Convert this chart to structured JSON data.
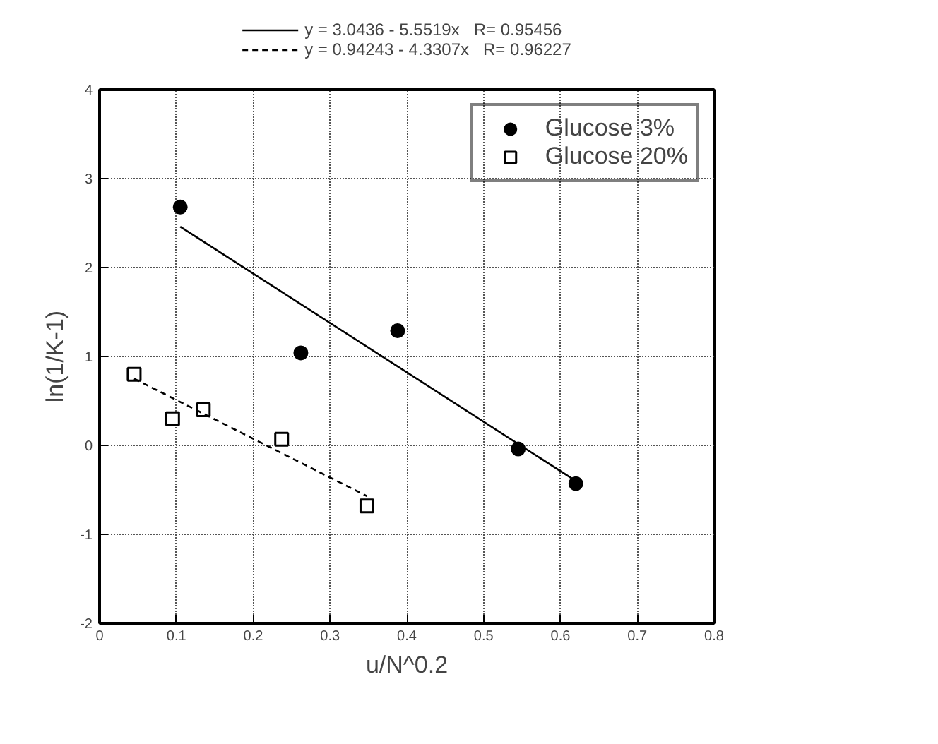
{
  "chart_data": {
    "type": "scatter",
    "xlabel": "u/N^0.2",
    "ylabel": "ln(1/K-1)",
    "xlim": [
      0,
      0.8
    ],
    "ylim": [
      -2,
      4
    ],
    "xticks": [
      0,
      0.1,
      0.2,
      0.3,
      0.4,
      0.5,
      0.6,
      0.7,
      0.8
    ],
    "yticks": [
      -2,
      -1,
      0,
      1,
      2,
      3,
      4
    ],
    "grid": true,
    "legend": "top right",
    "series": [
      {
        "name": "Glucose 3%",
        "color": "#000000",
        "marker": "circle",
        "x": [
          0.105,
          0.262,
          0.388,
          0.545,
          0.62
        ],
        "values": [
          2.68,
          1.04,
          1.29,
          -0.04,
          -0.43
        ]
      },
      {
        "name": "Glucose 20%",
        "color": "#000000",
        "marker": "square",
        "x": [
          0.045,
          0.095,
          0.135,
          0.237,
          0.348
        ],
        "values": [
          0.8,
          0.3,
          0.4,
          0.07,
          -0.68
        ]
      },
      {
        "name": "y = 3.0436 - 5.5519x   R= 0.95456",
        "color": "#000000",
        "type": "line",
        "line_style": "solid",
        "marker": "none",
        "x": [
          0.105,
          0.62
        ],
        "values": [
          2.46,
          -0.4
        ]
      },
      {
        "name": "y = 0.94243 - 4.3307x   R= 0.96227",
        "color": "#000000",
        "type": "line",
        "line_style": "dashed",
        "marker": "none",
        "x": [
          0.045,
          0.348
        ],
        "values": [
          0.75,
          -0.57
        ]
      }
    ]
  }
}
